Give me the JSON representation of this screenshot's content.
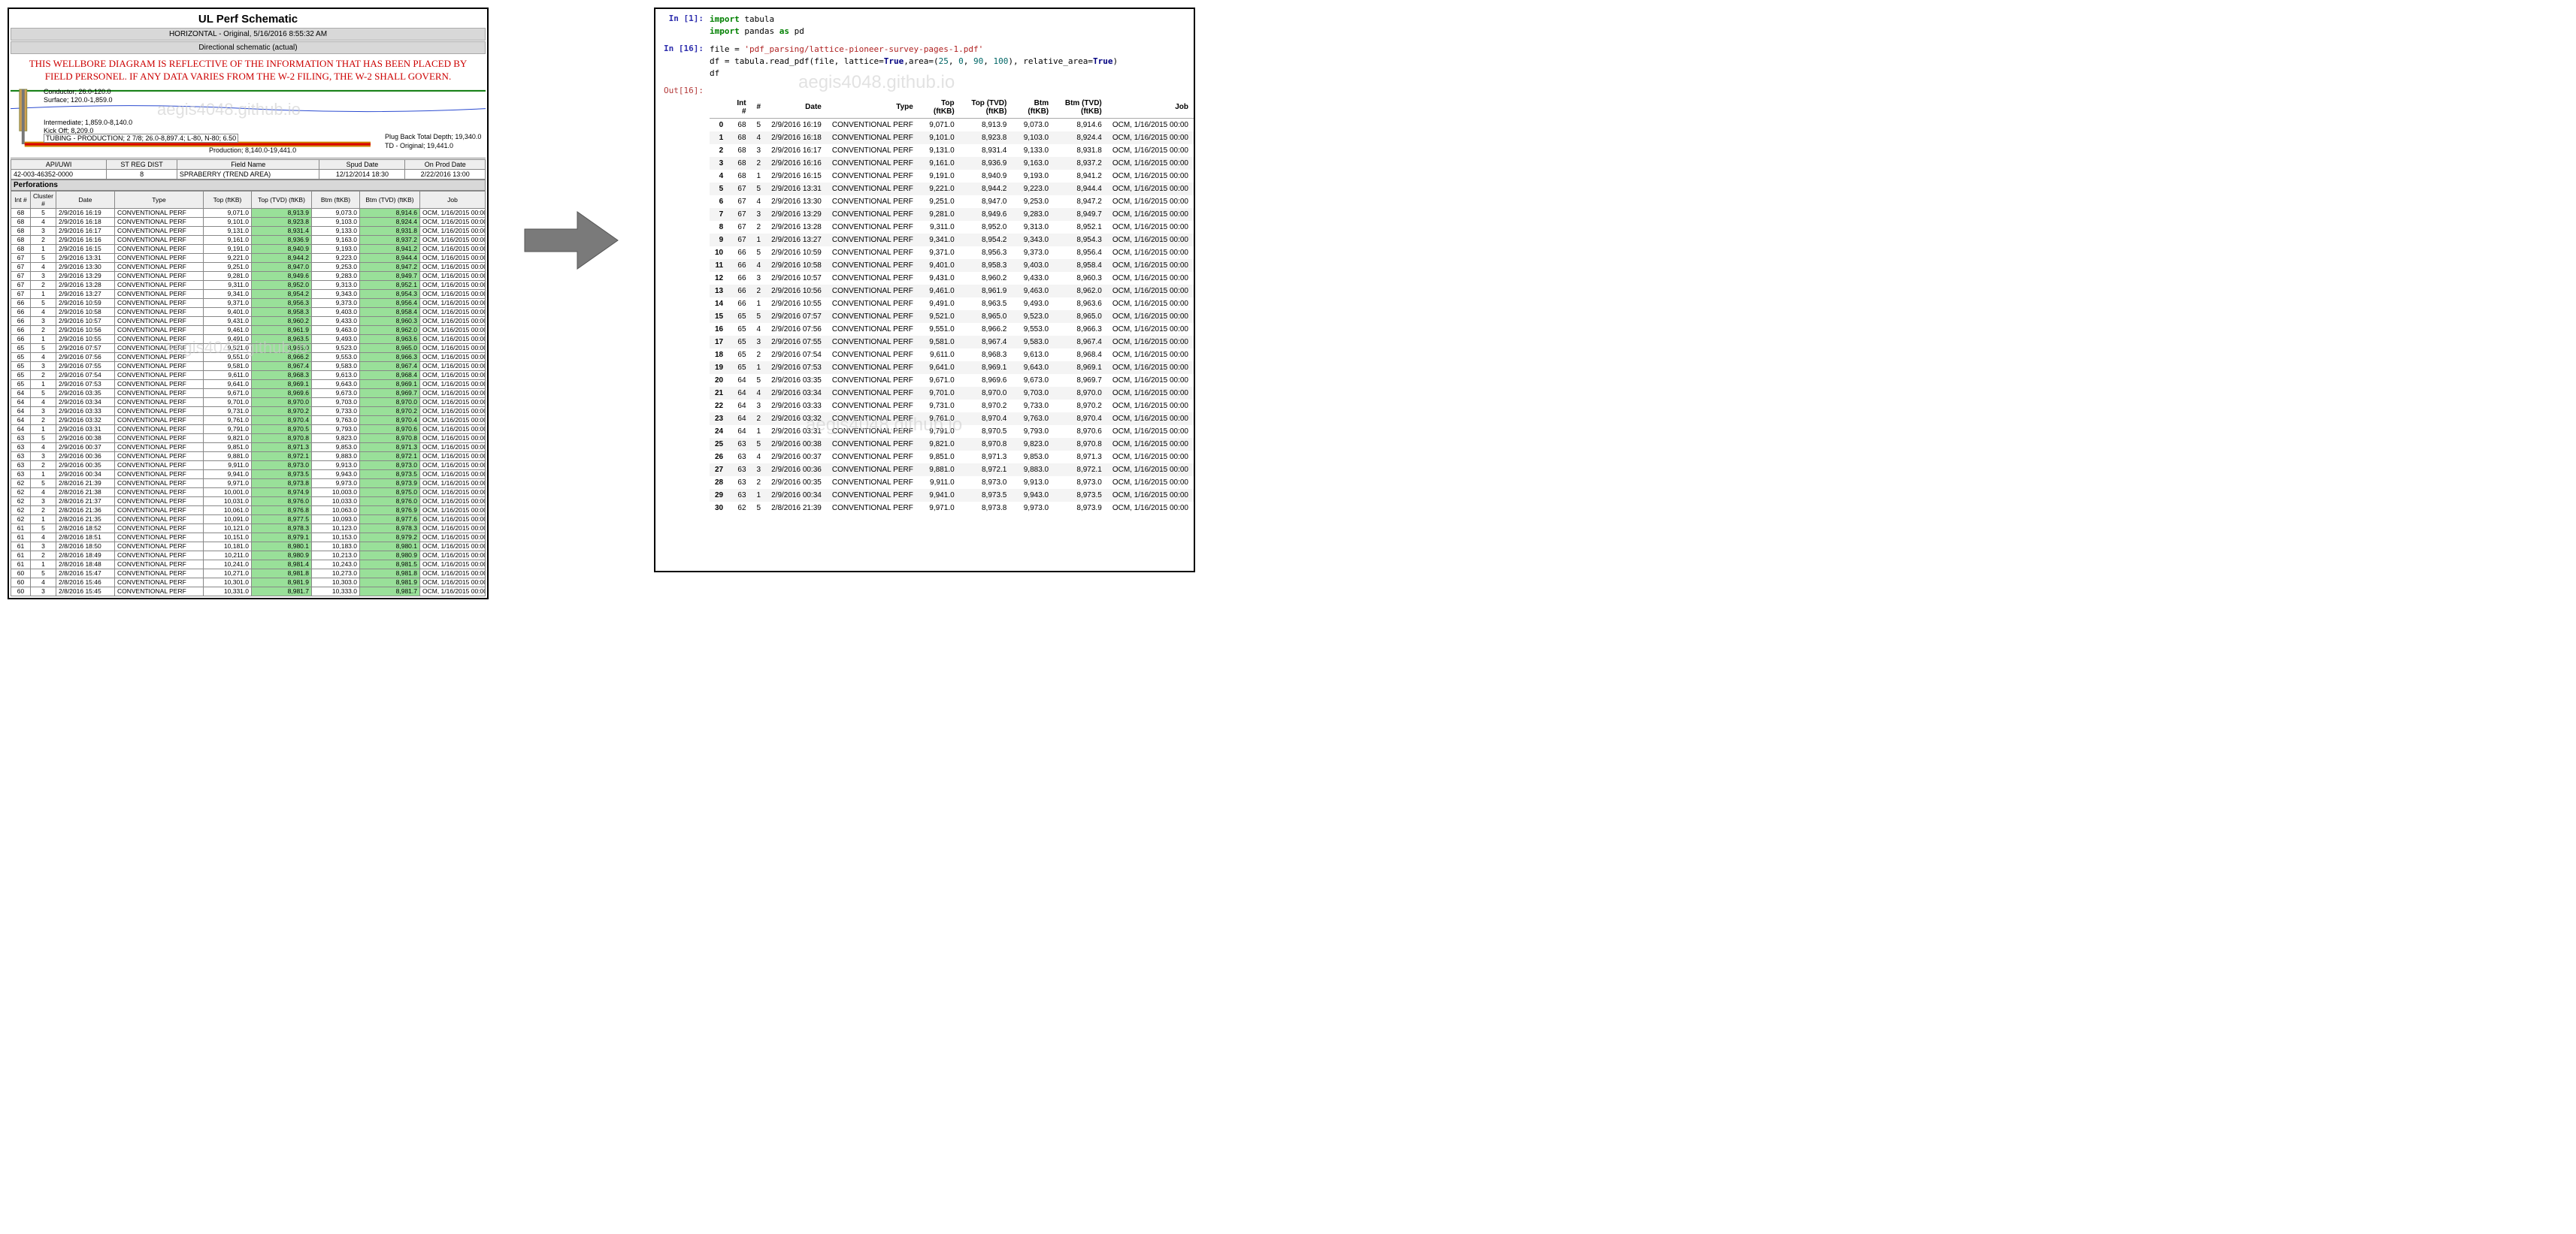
{
  "left": {
    "title": "UL Perf Schematic",
    "bar1": "HORIZONTAL - Original, 5/16/2016 8:55:32 AM",
    "bar2": "Directional schematic (actual)",
    "warning_line1": "THIS WELLBORE DIAGRAM IS REFLECTIVE OF THE INFORMATION THAT HAS BEEN PLACED BY",
    "warning_line2": "FIELD PERSONEL.  IF ANY DATA VARIES FROM THE W-2 FILING, THE W-2 SHALL GOVERN.",
    "watermark": "aegis4048.github.io",
    "schematic_labels": {
      "conductor": "Conductor; 26.0-120.0",
      "surface": "Surface; 120.0-1,859.0",
      "intermediate": "Intermediate; 1,859.0-8,140.0",
      "kickoff": "Kick Off; 8,209.0",
      "tubing": "TUBING - PRODUCTION; 2 7/8; 26.0-8,897.4; L-80, N-80; 6.50",
      "production": "Production; 8,140.0-19,441.0",
      "plugback": "Plug Back Total Depth; 19,340.0",
      "td": "TD - Original; 19,441.0"
    },
    "hdr": {
      "cols": [
        "API/UWI",
        "ST REG DIST",
        "Field Name",
        "Spud Date",
        "On Prod Date"
      ],
      "vals": [
        "42-003-46352-0000",
        "8",
        "SPRABERRY (TREND AREA)",
        "12/12/2014 18:30",
        "2/22/2016 13:00"
      ]
    },
    "section": "Perforations",
    "perf_hdr": [
      "Int #",
      "Cluster #",
      "Date",
      "Type",
      "Top (ftKB)",
      "Top (TVD) (ftKB)",
      "Btm (ftKB)",
      "Btm (TVD) (ftKB)",
      "Job"
    ],
    "perf_rows": [
      [
        "68",
        "5",
        "2/9/2016 16:19",
        "CONVENTIONAL PERF",
        "9,071.0",
        "8,913.9",
        "9,073.0",
        "8,914.6",
        "OCM, 1/16/2015 00:00"
      ],
      [
        "68",
        "4",
        "2/9/2016 16:18",
        "CONVENTIONAL PERF",
        "9,101.0",
        "8,923.8",
        "9,103.0",
        "8,924.4",
        "OCM, 1/16/2015 00:00"
      ],
      [
        "68",
        "3",
        "2/9/2016 16:17",
        "CONVENTIONAL PERF",
        "9,131.0",
        "8,931.4",
        "9,133.0",
        "8,931.8",
        "OCM, 1/16/2015 00:00"
      ],
      [
        "68",
        "2",
        "2/9/2016 16:16",
        "CONVENTIONAL PERF",
        "9,161.0",
        "8,936.9",
        "9,163.0",
        "8,937.2",
        "OCM, 1/16/2015 00:00"
      ],
      [
        "68",
        "1",
        "2/9/2016 16:15",
        "CONVENTIONAL PERF",
        "9,191.0",
        "8,940.9",
        "9,193.0",
        "8,941.2",
        "OCM, 1/16/2015 00:00"
      ],
      [
        "67",
        "5",
        "2/9/2016 13:31",
        "CONVENTIONAL PERF",
        "9,221.0",
        "8,944.2",
        "9,223.0",
        "8,944.4",
        "OCM, 1/16/2015 00:00"
      ],
      [
        "67",
        "4",
        "2/9/2016 13:30",
        "CONVENTIONAL PERF",
        "9,251.0",
        "8,947.0",
        "9,253.0",
        "8,947.2",
        "OCM, 1/16/2015 00:00"
      ],
      [
        "67",
        "3",
        "2/9/2016 13:29",
        "CONVENTIONAL PERF",
        "9,281.0",
        "8,949.6",
        "9,283.0",
        "8,949.7",
        "OCM, 1/16/2015 00:00"
      ],
      [
        "67",
        "2",
        "2/9/2016 13:28",
        "CONVENTIONAL PERF",
        "9,311.0",
        "8,952.0",
        "9,313.0",
        "8,952.1",
        "OCM, 1/16/2015 00:00"
      ],
      [
        "67",
        "1",
        "2/9/2016 13:27",
        "CONVENTIONAL PERF",
        "9,341.0",
        "8,954.2",
        "9,343.0",
        "8,954.3",
        "OCM, 1/16/2015 00:00"
      ],
      [
        "66",
        "5",
        "2/9/2016 10:59",
        "CONVENTIONAL PERF",
        "9,371.0",
        "8,956.3",
        "9,373.0",
        "8,956.4",
        "OCM, 1/16/2015 00:00"
      ],
      [
        "66",
        "4",
        "2/9/2016 10:58",
        "CONVENTIONAL PERF",
        "9,401.0",
        "8,958.3",
        "9,403.0",
        "8,958.4",
        "OCM, 1/16/2015 00:00"
      ],
      [
        "66",
        "3",
        "2/9/2016 10:57",
        "CONVENTIONAL PERF",
        "9,431.0",
        "8,960.2",
        "9,433.0",
        "8,960.3",
        "OCM, 1/16/2015 00:00"
      ],
      [
        "66",
        "2",
        "2/9/2016 10:56",
        "CONVENTIONAL PERF",
        "9,461.0",
        "8,961.9",
        "9,463.0",
        "8,962.0",
        "OCM, 1/16/2015 00:00"
      ],
      [
        "66",
        "1",
        "2/9/2016 10:55",
        "CONVENTIONAL PERF",
        "9,491.0",
        "8,963.5",
        "9,493.0",
        "8,963.6",
        "OCM, 1/16/2015 00:00"
      ],
      [
        "65",
        "5",
        "2/9/2016 07:57",
        "CONVENTIONAL PERF",
        "9,521.0",
        "8,965.0",
        "9,523.0",
        "8,965.0",
        "OCM, 1/16/2015 00:00"
      ],
      [
        "65",
        "4",
        "2/9/2016 07:56",
        "CONVENTIONAL PERF",
        "9,551.0",
        "8,966.2",
        "9,553.0",
        "8,966.3",
        "OCM, 1/16/2015 00:00"
      ],
      [
        "65",
        "3",
        "2/9/2016 07:55",
        "CONVENTIONAL PERF",
        "9,581.0",
        "8,967.4",
        "9,583.0",
        "8,967.4",
        "OCM, 1/16/2015 00:00"
      ],
      [
        "65",
        "2",
        "2/9/2016 07:54",
        "CONVENTIONAL PERF",
        "9,611.0",
        "8,968.3",
        "9,613.0",
        "8,968.4",
        "OCM, 1/16/2015 00:00"
      ],
      [
        "65",
        "1",
        "2/9/2016 07:53",
        "CONVENTIONAL PERF",
        "9,641.0",
        "8,969.1",
        "9,643.0",
        "8,969.1",
        "OCM, 1/16/2015 00:00"
      ],
      [
        "64",
        "5",
        "2/9/2016 03:35",
        "CONVENTIONAL PERF",
        "9,671.0",
        "8,969.6",
        "9,673.0",
        "8,969.7",
        "OCM, 1/16/2015 00:00"
      ],
      [
        "64",
        "4",
        "2/9/2016 03:34",
        "CONVENTIONAL PERF",
        "9,701.0",
        "8,970.0",
        "9,703.0",
        "8,970.0",
        "OCM, 1/16/2015 00:00"
      ],
      [
        "64",
        "3",
        "2/9/2016 03:33",
        "CONVENTIONAL PERF",
        "9,731.0",
        "8,970.2",
        "9,733.0",
        "8,970.2",
        "OCM, 1/16/2015 00:00"
      ],
      [
        "64",
        "2",
        "2/9/2016 03:32",
        "CONVENTIONAL PERF",
        "9,761.0",
        "8,970.4",
        "9,763.0",
        "8,970.4",
        "OCM, 1/16/2015 00:00"
      ],
      [
        "64",
        "1",
        "2/9/2016 03:31",
        "CONVENTIONAL PERF",
        "9,791.0",
        "8,970.5",
        "9,793.0",
        "8,970.6",
        "OCM, 1/16/2015 00:00"
      ],
      [
        "63",
        "5",
        "2/9/2016 00:38",
        "CONVENTIONAL PERF",
        "9,821.0",
        "8,970.8",
        "9,823.0",
        "8,970.8",
        "OCM, 1/16/2015 00:00"
      ],
      [
        "63",
        "4",
        "2/9/2016 00:37",
        "CONVENTIONAL PERF",
        "9,851.0",
        "8,971.3",
        "9,853.0",
        "8,971.3",
        "OCM, 1/16/2015 00:00"
      ],
      [
        "63",
        "3",
        "2/9/2016 00:36",
        "CONVENTIONAL PERF",
        "9,881.0",
        "8,972.1",
        "9,883.0",
        "8,972.1",
        "OCM, 1/16/2015 00:00"
      ],
      [
        "63",
        "2",
        "2/9/2016 00:35",
        "CONVENTIONAL PERF",
        "9,911.0",
        "8,973.0",
        "9,913.0",
        "8,973.0",
        "OCM, 1/16/2015 00:00"
      ],
      [
        "63",
        "1",
        "2/9/2016 00:34",
        "CONVENTIONAL PERF",
        "9,941.0",
        "8,973.5",
        "9,943.0",
        "8,973.5",
        "OCM, 1/16/2015 00:00"
      ],
      [
        "62",
        "5",
        "2/8/2016 21:39",
        "CONVENTIONAL PERF",
        "9,971.0",
        "8,973.8",
        "9,973.0",
        "8,973.9",
        "OCM, 1/16/2015 00:00"
      ],
      [
        "62",
        "4",
        "2/8/2016 21:38",
        "CONVENTIONAL PERF",
        "10,001.0",
        "8,974.9",
        "10,003.0",
        "8,975.0",
        "OCM, 1/16/2015 00:00"
      ],
      [
        "62",
        "3",
        "2/8/2016 21:37",
        "CONVENTIONAL PERF",
        "10,031.0",
        "8,976.0",
        "10,033.0",
        "8,976.0",
        "OCM, 1/16/2015 00:00"
      ],
      [
        "62",
        "2",
        "2/8/2016 21:36",
        "CONVENTIONAL PERF",
        "10,061.0",
        "8,976.8",
        "10,063.0",
        "8,976.9",
        "OCM, 1/16/2015 00:00"
      ],
      [
        "62",
        "1",
        "2/8/2016 21:35",
        "CONVENTIONAL PERF",
        "10,091.0",
        "8,977.5",
        "10,093.0",
        "8,977.6",
        "OCM, 1/16/2015 00:00"
      ],
      [
        "61",
        "5",
        "2/8/2016 18:52",
        "CONVENTIONAL PERF",
        "10,121.0",
        "8,978.3",
        "10,123.0",
        "8,978.3",
        "OCM, 1/16/2015 00:00"
      ],
      [
        "61",
        "4",
        "2/8/2016 18:51",
        "CONVENTIONAL PERF",
        "10,151.0",
        "8,979.1",
        "10,153.0",
        "8,979.2",
        "OCM, 1/16/2015 00:00"
      ],
      [
        "61",
        "3",
        "2/8/2016 18:50",
        "CONVENTIONAL PERF",
        "10,181.0",
        "8,980.1",
        "10,183.0",
        "8,980.1",
        "OCM, 1/16/2015 00:00"
      ],
      [
        "61",
        "2",
        "2/8/2016 18:49",
        "CONVENTIONAL PERF",
        "10,211.0",
        "8,980.9",
        "10,213.0",
        "8,980.9",
        "OCM, 1/16/2015 00:00"
      ],
      [
        "61",
        "1",
        "2/8/2016 18:48",
        "CONVENTIONAL PERF",
        "10,241.0",
        "8,981.4",
        "10,243.0",
        "8,981.5",
        "OCM, 1/16/2015 00:00"
      ],
      [
        "60",
        "5",
        "2/8/2016 15:47",
        "CONVENTIONAL PERF",
        "10,271.0",
        "8,981.8",
        "10,273.0",
        "8,981.8",
        "OCM, 1/16/2015 00:00"
      ],
      [
        "60",
        "4",
        "2/8/2016 15:46",
        "CONVENTIONAL PERF",
        "10,301.0",
        "8,981.9",
        "10,303.0",
        "8,981.9",
        "OCM, 1/16/2015 00:00"
      ],
      [
        "60",
        "3",
        "2/8/2016 15:45",
        "CONVENTIONAL PERF",
        "10,331.0",
        "8,981.7",
        "10,333.0",
        "8,981.7",
        "OCM, 1/16/2015 00:00"
      ]
    ],
    "green_color": "#99e099",
    "colors": {
      "border": "#888",
      "hdr_bg": "#eee",
      "grey_bar": "#d8d8d8",
      "warning": "#cc0000"
    }
  },
  "right": {
    "in1_prompt": "In [1]:",
    "in16_prompt": "In [16]:",
    "out16_prompt": "Out[16]:",
    "code1_l1_a": "import",
    "code1_l1_b": " tabula",
    "code1_l2_a": "import",
    "code1_l2_b": " pandas ",
    "code1_l2_c": "as",
    "code1_l2_d": " pd",
    "code16_l1_a": "file = ",
    "code16_l1_b": "'pdf_parsing/lattice-pioneer-survey-pages-1.pdf'",
    "code16_l2_a": "df = tabula.read_pdf(file, lattice=",
    "code16_l2_b": "True",
    "code16_l2_c": ",area=(",
    "code16_l2_d": "25",
    "code16_l2_e": ", ",
    "code16_l2_f": "0",
    "code16_l2_g": ", ",
    "code16_l2_h": "90",
    "code16_l2_i": ", ",
    "code16_l2_j": "100",
    "code16_l2_k": "), relative_area=",
    "code16_l2_l": "True",
    "code16_l2_m": ")",
    "code16_l3": "df",
    "watermark": "aegis4048.github.io",
    "df_hdr": [
      "",
      "Int #",
      "#",
      "Date",
      "Type",
      "Top (ftKB)",
      "Top (TVD) (ftKB)",
      "Btm (ftKB)",
      "Btm (TVD) (ftKB)",
      "Job"
    ],
    "df_rows": [
      [
        "0",
        "68",
        "5",
        "2/9/2016 16:19",
        "CONVENTIONAL PERF",
        "9,071.0",
        "8,913.9",
        "9,073.0",
        "8,914.6",
        "OCM, 1/16/2015 00:00"
      ],
      [
        "1",
        "68",
        "4",
        "2/9/2016 16:18",
        "CONVENTIONAL PERF",
        "9,101.0",
        "8,923.8",
        "9,103.0",
        "8,924.4",
        "OCM, 1/16/2015 00:00"
      ],
      [
        "2",
        "68",
        "3",
        "2/9/2016 16:17",
        "CONVENTIONAL PERF",
        "9,131.0",
        "8,931.4",
        "9,133.0",
        "8,931.8",
        "OCM, 1/16/2015 00:00"
      ],
      [
        "3",
        "68",
        "2",
        "2/9/2016 16:16",
        "CONVENTIONAL PERF",
        "9,161.0",
        "8,936.9",
        "9,163.0",
        "8,937.2",
        "OCM, 1/16/2015 00:00"
      ],
      [
        "4",
        "68",
        "1",
        "2/9/2016 16:15",
        "CONVENTIONAL PERF",
        "9,191.0",
        "8,940.9",
        "9,193.0",
        "8,941.2",
        "OCM, 1/16/2015 00:00"
      ],
      [
        "5",
        "67",
        "5",
        "2/9/2016 13:31",
        "CONVENTIONAL PERF",
        "9,221.0",
        "8,944.2",
        "9,223.0",
        "8,944.4",
        "OCM, 1/16/2015 00:00"
      ],
      [
        "6",
        "67",
        "4",
        "2/9/2016 13:30",
        "CONVENTIONAL PERF",
        "9,251.0",
        "8,947.0",
        "9,253.0",
        "8,947.2",
        "OCM, 1/16/2015 00:00"
      ],
      [
        "7",
        "67",
        "3",
        "2/9/2016 13:29",
        "CONVENTIONAL PERF",
        "9,281.0",
        "8,949.6",
        "9,283.0",
        "8,949.7",
        "OCM, 1/16/2015 00:00"
      ],
      [
        "8",
        "67",
        "2",
        "2/9/2016 13:28",
        "CONVENTIONAL PERF",
        "9,311.0",
        "8,952.0",
        "9,313.0",
        "8,952.1",
        "OCM, 1/16/2015 00:00"
      ],
      [
        "9",
        "67",
        "1",
        "2/9/2016 13:27",
        "CONVENTIONAL PERF",
        "9,341.0",
        "8,954.2",
        "9,343.0",
        "8,954.3",
        "OCM, 1/16/2015 00:00"
      ],
      [
        "10",
        "66",
        "5",
        "2/9/2016 10:59",
        "CONVENTIONAL PERF",
        "9,371.0",
        "8,956.3",
        "9,373.0",
        "8,956.4",
        "OCM, 1/16/2015 00:00"
      ],
      [
        "11",
        "66",
        "4",
        "2/9/2016 10:58",
        "CONVENTIONAL PERF",
        "9,401.0",
        "8,958.3",
        "9,403.0",
        "8,958.4",
        "OCM, 1/16/2015 00:00"
      ],
      [
        "12",
        "66",
        "3",
        "2/9/2016 10:57",
        "CONVENTIONAL PERF",
        "9,431.0",
        "8,960.2",
        "9,433.0",
        "8,960.3",
        "OCM, 1/16/2015 00:00"
      ],
      [
        "13",
        "66",
        "2",
        "2/9/2016 10:56",
        "CONVENTIONAL PERF",
        "9,461.0",
        "8,961.9",
        "9,463.0",
        "8,962.0",
        "OCM, 1/16/2015 00:00"
      ],
      [
        "14",
        "66",
        "1",
        "2/9/2016 10:55",
        "CONVENTIONAL PERF",
        "9,491.0",
        "8,963.5",
        "9,493.0",
        "8,963.6",
        "OCM, 1/16/2015 00:00"
      ],
      [
        "15",
        "65",
        "5",
        "2/9/2016 07:57",
        "CONVENTIONAL PERF",
        "9,521.0",
        "8,965.0",
        "9,523.0",
        "8,965.0",
        "OCM, 1/16/2015 00:00"
      ],
      [
        "16",
        "65",
        "4",
        "2/9/2016 07:56",
        "CONVENTIONAL PERF",
        "9,551.0",
        "8,966.2",
        "9,553.0",
        "8,966.3",
        "OCM, 1/16/2015 00:00"
      ],
      [
        "17",
        "65",
        "3",
        "2/9/2016 07:55",
        "CONVENTIONAL PERF",
        "9,581.0",
        "8,967.4",
        "9,583.0",
        "8,967.4",
        "OCM, 1/16/2015 00:00"
      ],
      [
        "18",
        "65",
        "2",
        "2/9/2016 07:54",
        "CONVENTIONAL PERF",
        "9,611.0",
        "8,968.3",
        "9,613.0",
        "8,968.4",
        "OCM, 1/16/2015 00:00"
      ],
      [
        "19",
        "65",
        "1",
        "2/9/2016 07:53",
        "CONVENTIONAL PERF",
        "9,641.0",
        "8,969.1",
        "9,643.0",
        "8,969.1",
        "OCM, 1/16/2015 00:00"
      ],
      [
        "20",
        "64",
        "5",
        "2/9/2016 03:35",
        "CONVENTIONAL PERF",
        "9,671.0",
        "8,969.6",
        "9,673.0",
        "8,969.7",
        "OCM, 1/16/2015 00:00"
      ],
      [
        "21",
        "64",
        "4",
        "2/9/2016 03:34",
        "CONVENTIONAL PERF",
        "9,701.0",
        "8,970.0",
        "9,703.0",
        "8,970.0",
        "OCM, 1/16/2015 00:00"
      ],
      [
        "22",
        "64",
        "3",
        "2/9/2016 03:33",
        "CONVENTIONAL PERF",
        "9,731.0",
        "8,970.2",
        "9,733.0",
        "8,970.2",
        "OCM, 1/16/2015 00:00"
      ],
      [
        "23",
        "64",
        "2",
        "2/9/2016 03:32",
        "CONVENTIONAL PERF",
        "9,761.0",
        "8,970.4",
        "9,763.0",
        "8,970.4",
        "OCM, 1/16/2015 00:00"
      ],
      [
        "24",
        "64",
        "1",
        "2/9/2016 03:31",
        "CONVENTIONAL PERF",
        "9,791.0",
        "8,970.5",
        "9,793.0",
        "8,970.6",
        "OCM, 1/16/2015 00:00"
      ],
      [
        "25",
        "63",
        "5",
        "2/9/2016 00:38",
        "CONVENTIONAL PERF",
        "9,821.0",
        "8,970.8",
        "9,823.0",
        "8,970.8",
        "OCM, 1/16/2015 00:00"
      ],
      [
        "26",
        "63",
        "4",
        "2/9/2016 00:37",
        "CONVENTIONAL PERF",
        "9,851.0",
        "8,971.3",
        "9,853.0",
        "8,971.3",
        "OCM, 1/16/2015 00:00"
      ],
      [
        "27",
        "63",
        "3",
        "2/9/2016 00:36",
        "CONVENTIONAL PERF",
        "9,881.0",
        "8,972.1",
        "9,883.0",
        "8,972.1",
        "OCM, 1/16/2015 00:00"
      ],
      [
        "28",
        "63",
        "2",
        "2/9/2016 00:35",
        "CONVENTIONAL PERF",
        "9,911.0",
        "8,973.0",
        "9,913.0",
        "8,973.0",
        "OCM, 1/16/2015 00:00"
      ],
      [
        "29",
        "63",
        "1",
        "2/9/2016 00:34",
        "CONVENTIONAL PERF",
        "9,941.0",
        "8,973.5",
        "9,943.0",
        "8,973.5",
        "OCM, 1/16/2015 00:00"
      ],
      [
        "30",
        "62",
        "5",
        "2/8/2016 21:39",
        "CONVENTIONAL PERF",
        "9,971.0",
        "8,973.8",
        "9,973.0",
        "8,973.9",
        "OCM, 1/16/2015 00:00"
      ]
    ]
  }
}
